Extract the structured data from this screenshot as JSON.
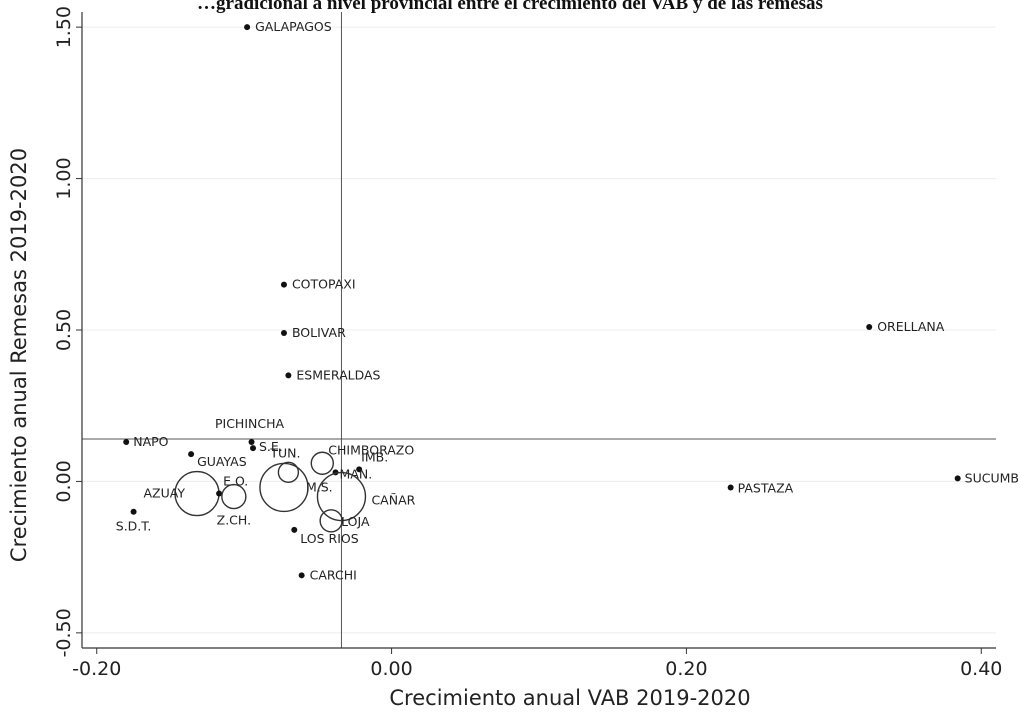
{
  "chart_data": {
    "type": "scatter",
    "title": "…gradicional a nivel provincial entre el crecimiento del VAB y de las remesas",
    "xlabel": "Crecimiento anual VAB 2019-2020",
    "ylabel": "Crecimiento anual Remesas 2019-2020",
    "xlim": [
      -0.21,
      0.41
    ],
    "ylim": [
      -0.55,
      1.55
    ],
    "xticks": [
      -0.2,
      0,
      0.2,
      0.4
    ],
    "xtick_labels": [
      "-0.20",
      "0.00",
      "0.20",
      "0.40"
    ],
    "yticks": [
      -0.5,
      0,
      0.5,
      1.0,
      1.5
    ],
    "ytick_labels": [
      "-0.50",
      "0.00",
      "0.50",
      "1.00",
      "1.50"
    ],
    "grid": "horizontal",
    "reference_lines": {
      "x": -0.034,
      "y": 0.14
    },
    "points": [
      {
        "label": "GALAPAGOS",
        "x": -0.098,
        "y": 1.5,
        "size": 0
      },
      {
        "label": "COTOPAXI",
        "x": -0.073,
        "y": 0.65,
        "size": 0
      },
      {
        "label": "BOLIVAR",
        "x": -0.073,
        "y": 0.49,
        "size": 0
      },
      {
        "label": "ESMERALDAS",
        "x": -0.07,
        "y": 0.35,
        "size": 0
      },
      {
        "label": "ORELLANA",
        "x": 0.324,
        "y": 0.51,
        "size": 0
      },
      {
        "label": "NAPO",
        "x": -0.18,
        "y": 0.13,
        "size": 0
      },
      {
        "label": "PICHINCHA",
        "x": -0.095,
        "y": 0.13,
        "size": 0
      },
      {
        "label": "S.E.",
        "x": -0.094,
        "y": 0.11,
        "size": 0
      },
      {
        "label": "GUAYAS",
        "x": -0.136,
        "y": 0.09,
        "size": 0
      },
      {
        "label": "TUN.",
        "x": -0.07,
        "y": 0.03,
        "size": 10
      },
      {
        "label": "CHIMBORAZO",
        "x": -0.047,
        "y": 0.06,
        "size": 11
      },
      {
        "label": "IMB.",
        "x": -0.022,
        "y": 0.04,
        "size": 0
      },
      {
        "label": "MAN.",
        "x": -0.038,
        "y": 0.03,
        "size": 0
      },
      {
        "label": "M.S.",
        "x": -0.073,
        "y": -0.02,
        "size": 24
      },
      {
        "label": "AZUAY",
        "x": -0.132,
        "y": -0.04,
        "size": 22
      },
      {
        "label": "E.O.",
        "x": -0.117,
        "y": -0.04,
        "size": 0
      },
      {
        "label": "Z.CH.",
        "x": -0.107,
        "y": -0.05,
        "size": 12
      },
      {
        "label": "CAÑAR",
        "x": -0.034,
        "y": -0.05,
        "size": 24
      },
      {
        "label": "LOJA",
        "x": -0.041,
        "y": -0.13,
        "size": 11
      },
      {
        "label": "LOS RIOS",
        "x": -0.066,
        "y": -0.16,
        "size": 0
      },
      {
        "label": "S.D.T.",
        "x": -0.175,
        "y": -0.1,
        "size": 0
      },
      {
        "label": "CARCHI",
        "x": -0.061,
        "y": -0.31,
        "size": 0
      },
      {
        "label": "PASTAZA",
        "x": 0.23,
        "y": -0.02,
        "size": 0
      },
      {
        "label": "SUCUMBIOS",
        "x": 0.384,
        "y": 0.01,
        "size": 0
      }
    ]
  }
}
